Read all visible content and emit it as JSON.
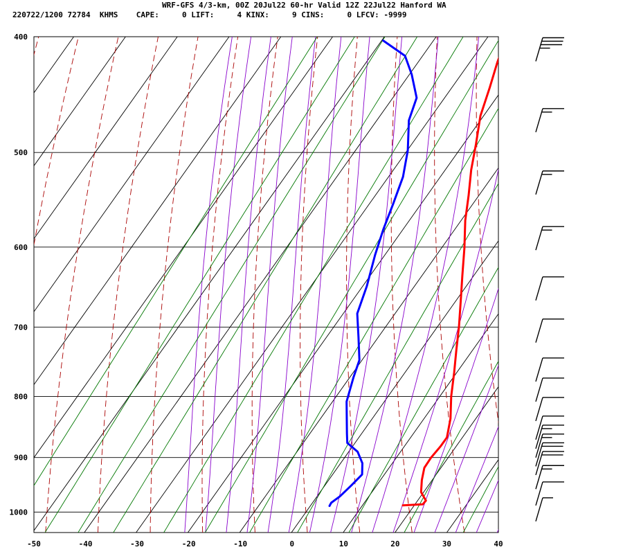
{
  "header": {
    "title": "WRF-GFS 4/3-km, 00Z 20Jul22 60-hr Valid 12Z 22Jul22 Hanford WA",
    "indices": "220722/1200 72784  KHMS    CAPE:     0 LIFT:     4 KINX:     9 CINS:     0 LFCV: -9999"
  },
  "colors": {
    "temperature": "#ff0000",
    "dewpoint": "#0000ff",
    "dry_adiabat": "#aa0000",
    "moist_adiabat": "#8800cc",
    "mixing_ratio": "#007700",
    "isobar": "#000000",
    "isotherm": "#000000"
  },
  "chart_data": {
    "type": "line",
    "chart_kind": "skew-T log-P sounding",
    "title": "WRF-GFS 4/3-km, 00Z 20Jul22 60-hr Valid 12Z 22Jul22 Hanford WA",
    "xlabel": "",
    "ylabel": "",
    "x_ticks": [
      -50,
      -40,
      -30,
      -20,
      -10,
      0,
      10,
      20,
      30,
      40
    ],
    "y_ticks": [
      400,
      500,
      600,
      700,
      800,
      900,
      1000
    ],
    "xlim": [
      -50,
      40
    ],
    "ylim": [
      1040,
      400
    ],
    "y_scale": "log",
    "grid": true,
    "series": [
      {
        "key": "temperature",
        "points": [
          [
            987,
            17.8
          ],
          [
            985,
            21.5
          ],
          [
            978,
            21.6
          ],
          [
            962,
            19.5
          ],
          [
            940,
            18.0
          ],
          [
            918,
            16.8
          ],
          [
            900,
            16.7
          ],
          [
            880,
            17.0
          ],
          [
            866,
            17.0
          ],
          [
            835,
            15.1
          ],
          [
            800,
            12.2
          ],
          [
            764,
            9.5
          ],
          [
            730,
            6.7
          ],
          [
            700,
            4.2
          ],
          [
            664,
            0.8
          ],
          [
            634,
            -2.2
          ],
          [
            601,
            -5.6
          ],
          [
            570,
            -9.2
          ],
          [
            543,
            -12.0
          ],
          [
            517,
            -15.0
          ],
          [
            492,
            -17.6
          ],
          [
            466,
            -20.6
          ],
          [
            441,
            -22.7
          ],
          [
            420,
            -24.7
          ],
          [
            404,
            -26.0
          ]
        ]
      },
      {
        "key": "dewpoint",
        "points": [
          [
            988,
            3.7
          ],
          [
            982,
            3.6
          ],
          [
            970,
            4.4
          ],
          [
            950,
            5.1
          ],
          [
            930,
            5.7
          ],
          [
            910,
            4.2
          ],
          [
            890,
            1.7
          ],
          [
            875,
            -1.5
          ],
          [
            860,
            -2.8
          ],
          [
            840,
            -4.5
          ],
          [
            808,
            -7.3
          ],
          [
            771,
            -9.3
          ],
          [
            746,
            -10.5
          ],
          [
            714,
            -13.8
          ],
          [
            682,
            -17.3
          ],
          [
            647,
            -19.2
          ],
          [
            609,
            -21.9
          ],
          [
            580,
            -23.8
          ],
          [
            552,
            -25.4
          ],
          [
            524,
            -27.2
          ],
          [
            498,
            -29.9
          ],
          [
            470,
            -33.8
          ],
          [
            450,
            -35.4
          ],
          [
            430,
            -39.6
          ],
          [
            415,
            -43.4
          ],
          [
            403,
            -49.7
          ]
        ]
      }
    ],
    "wind_barbs": {
      "pressure_hpa": [
        410,
        470,
        530,
        590,
        650,
        705,
        760,
        790,
        820,
        850,
        865,
        880,
        895,
        910,
        935,
        965,
        995
      ],
      "speed_kt": [
        35,
        15,
        15,
        15,
        10,
        10,
        10,
        10,
        10,
        10,
        15,
        15,
        20,
        20,
        15,
        10,
        5
      ],
      "style": "staff angled, barbs pointing right"
    }
  }
}
